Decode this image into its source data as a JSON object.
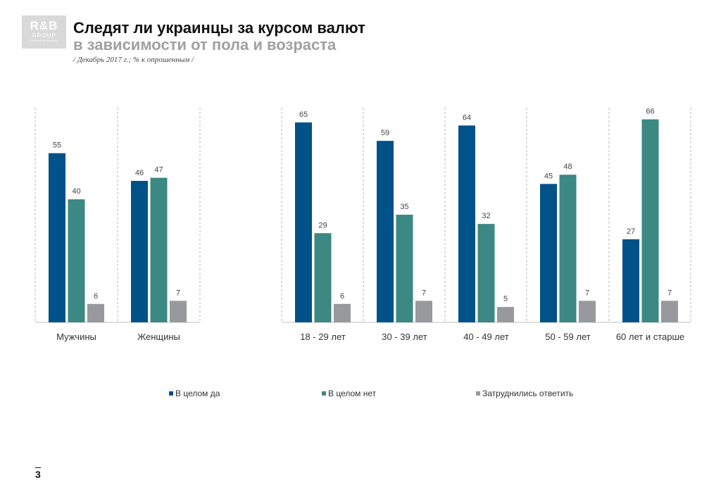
{
  "logo": {
    "main": "R&B",
    "sub": "GROUP",
    "tag": "Research & Branding"
  },
  "header": {
    "title": "Следят ли украинцы за курсом валют",
    "subtitle": "в зависимости от пола и возраста",
    "note": "/ Декабрь 2017 г.; % к опрошенным /"
  },
  "page_number": "3",
  "colors": {
    "yes": "#005288",
    "no": "#3c8883",
    "unsure": "#98999d"
  },
  "chart_data": {
    "type": "bar",
    "title": "Следят ли украинцы за курсом валют в зависимости от пола и возраста",
    "subtitle": "/ Декабрь 2017 г.; % к опрошенным /",
    "categories": [
      "Мужчины",
      "Женщины",
      "18 - 29 лет",
      "30 - 39 лет",
      "40 - 49 лет",
      "50 - 59 лет",
      "60 лет и старше"
    ],
    "series": [
      {
        "name": "В целом да",
        "values": [
          55,
          46,
          65,
          59,
          64,
          45,
          27
        ]
      },
      {
        "name": "В целом нет",
        "values": [
          40,
          47,
          29,
          35,
          32,
          48,
          66
        ]
      },
      {
        "name": "Затруднились ответить",
        "values": [
          6,
          7,
          6,
          7,
          5,
          7,
          7
        ]
      }
    ],
    "ylim": [
      0,
      70
    ],
    "legend": "bottom"
  }
}
